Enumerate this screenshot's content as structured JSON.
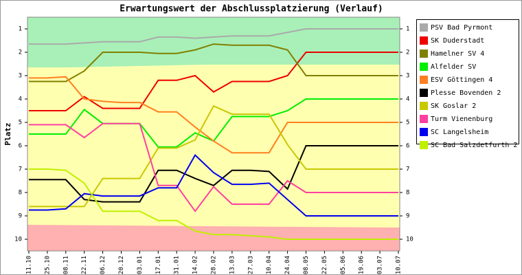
{
  "chart_data": {
    "type": "line",
    "title": "Erwartungswert der Abschlussplatzierung (Verlauf)",
    "y_label": "Platz",
    "y_inverted": true,
    "categories": [
      "11.10",
      "25.10",
      "08.11",
      "22.11",
      "06.12",
      "20.12",
      "03.01",
      "17.01",
      "31.01",
      "14.02",
      "28.02",
      "13.03",
      "27.03",
      "10.04",
      "24.04",
      "08.05",
      "22.05",
      "05.06",
      "19.06",
      "03.07",
      "10.07"
    ],
    "ylim": [
      0.5,
      10.5
    ],
    "yticks": [
      1,
      2,
      3,
      4,
      5,
      6,
      7,
      8,
      9,
      10
    ],
    "series": [
      {
        "name": "PSV Bad Pyrmont",
        "color": "#aaaaaa",
        "values": [
          1.65,
          1.65,
          1.65,
          1.6,
          1.55,
          1.55,
          1.55,
          1.35,
          1.35,
          1.4,
          1.35,
          1.3,
          1.3,
          1.3,
          1.15,
          1,
          1,
          1,
          1,
          1,
          1
        ]
      },
      {
        "name": "SK Duderstadt",
        "color": "#ee0000",
        "values": [
          4.5,
          4.5,
          4.5,
          3.9,
          4.4,
          4.4,
          4.4,
          3.2,
          3.2,
          3,
          3.7,
          3.25,
          3.25,
          3.25,
          3,
          2,
          2,
          2,
          2,
          2,
          2
        ]
      },
      {
        "name": "Hamelner SV 4",
        "color": "#808000",
        "values": [
          3.25,
          3.25,
          3.25,
          2.8,
          2,
          2,
          2,
          2.05,
          2.05,
          1.9,
          1.65,
          1.7,
          1.7,
          1.7,
          1.9,
          3,
          3,
          3,
          3,
          3,
          3
        ]
      },
      {
        "name": "Alfelder SV",
        "color": "#00ee00",
        "values": [
          5.5,
          5.5,
          5.5,
          4.45,
          5.05,
          5.05,
          5.05,
          6.05,
          6.05,
          5.45,
          5.8,
          4.75,
          4.75,
          4.75,
          4.5,
          4,
          4,
          4,
          4,
          4,
          4
        ]
      },
      {
        "name": "ESV Göttingen 4",
        "color": "#ff8020",
        "values": [
          3.1,
          3.1,
          3.05,
          4,
          4.1,
          4.15,
          4.15,
          4.55,
          4.55,
          5.2,
          5.8,
          6.3,
          6.3,
          6.3,
          5,
          5,
          5,
          5,
          5,
          5,
          5
        ]
      },
      {
        "name": "Plesse Bovenden 2",
        "color": "#000000",
        "values": [
          7.45,
          7.45,
          7.45,
          8.3,
          8.4,
          8.4,
          8.4,
          7.05,
          7.05,
          7.4,
          7.7,
          7.05,
          7.05,
          7.1,
          7.85,
          6,
          6,
          6,
          6,
          6,
          6
        ]
      },
      {
        "name": "SK Goslar 2",
        "color": "#c8c800",
        "values": [
          8.6,
          8.6,
          8.6,
          8.6,
          7.4,
          7.4,
          7.4,
          6.1,
          6.1,
          5.75,
          4.3,
          4.65,
          4.65,
          4.65,
          5.95,
          7,
          7,
          7,
          7,
          7,
          7
        ]
      },
      {
        "name": "Turm Vienenburg",
        "color": "#ff40a0",
        "values": [
          5.1,
          5.1,
          5.1,
          5.65,
          5.05,
          5.05,
          5.05,
          7.7,
          7.7,
          8.8,
          7.75,
          8.5,
          8.5,
          8.5,
          7.5,
          8,
          8,
          8,
          8,
          8,
          8
        ]
      },
      {
        "name": "SC Langelsheim",
        "color": "#0000ee",
        "values": [
          8.75,
          8.75,
          8.7,
          8.05,
          8.15,
          8.15,
          8.15,
          7.8,
          7.8,
          6.4,
          7.15,
          7.65,
          7.65,
          7.6,
          8.3,
          9,
          9,
          9,
          9,
          9,
          9
        ]
      },
      {
        "name": "SC Bad Salzdetfurth 2",
        "color": "#c0f000",
        "values": [
          7,
          7,
          7.05,
          7.6,
          8.8,
          8.8,
          8.8,
          9.2,
          9.2,
          9.65,
          9.8,
          9.8,
          9.85,
          9.9,
          10,
          10,
          10,
          10,
          10,
          10,
          10
        ]
      }
    ]
  }
}
